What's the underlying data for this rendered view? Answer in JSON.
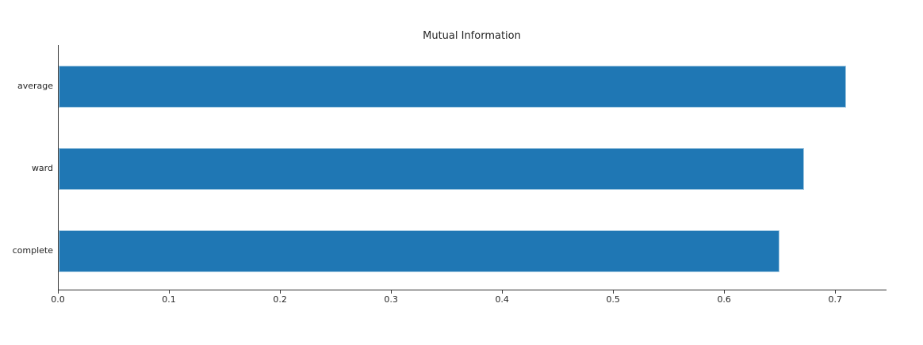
{
  "chart_data": {
    "type": "bar",
    "orientation": "horizontal",
    "title": "Mutual Information",
    "categories": [
      "average",
      "ward",
      "complete"
    ],
    "values": [
      0.709,
      0.671,
      0.649
    ],
    "xlabel": "",
    "ylabel": "",
    "xlim": [
      0,
      0.7455
    ],
    "xticks": [
      0.0,
      0.1,
      0.2,
      0.3,
      0.4,
      0.5,
      0.6,
      0.7
    ],
    "xtick_labels": [
      "0.0",
      "0.1",
      "0.2",
      "0.3",
      "0.4",
      "0.5",
      "0.6",
      "0.7"
    ],
    "grid": false,
    "legend": null
  },
  "colors": {
    "bar": "#1f77b4",
    "axis": "#333333",
    "text": "#262626",
    "background": "#ffffff"
  }
}
